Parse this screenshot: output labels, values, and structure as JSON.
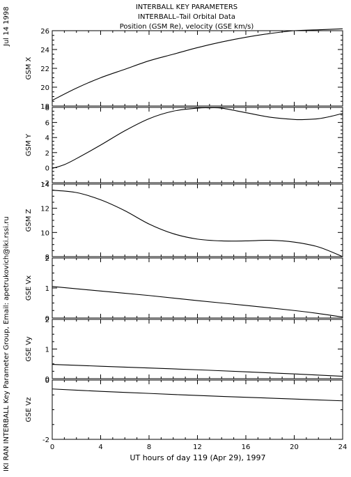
{
  "header": {
    "line1": "INTERBALL KEY PARAMETERS",
    "line2": "INTERBALL–Tail Orbital Data",
    "line3": "Position (GSM Re), velocity (GSE km/s)"
  },
  "side": {
    "date": "Jul 14 1998",
    "credit": "IKI RAN INTERBALL Key Parameter Group, Email: apetrukovich@iki.rssi.ru"
  },
  "xaxis": {
    "label": "UT hours of day 119 (Apr 29), 1997",
    "ticks": [
      "0",
      "4",
      "8",
      "12",
      "16",
      "20",
      "24"
    ]
  },
  "chart_data": [
    {
      "type": "line",
      "ylabel": "GSM X",
      "xlim": [
        0,
        24
      ],
      "ylim": [
        18,
        26
      ],
      "yticks": [
        "18",
        "20",
        "22",
        "24",
        "26"
      ],
      "series": [
        {
          "x": [
            0,
            2,
            4,
            6,
            8,
            10,
            12,
            14,
            16,
            18,
            20,
            22,
            24
          ],
          "values": [
            18.6,
            19.9,
            21.0,
            21.9,
            22.8,
            23.5,
            24.2,
            24.8,
            25.3,
            25.7,
            26.0,
            26.1,
            26.2
          ]
        }
      ]
    },
    {
      "type": "line",
      "ylabel": "GSM Y",
      "xlim": [
        0,
        24
      ],
      "ylim": [
        -2,
        8
      ],
      "yticks": [
        "-2",
        "0",
        "2",
        "4",
        "6",
        "8"
      ],
      "series": [
        {
          "x": [
            0,
            1,
            2,
            4,
            6,
            8,
            10,
            12,
            13,
            14,
            16,
            18,
            20,
            21,
            22,
            23,
            24
          ],
          "values": [
            -0.1,
            0.4,
            1.2,
            3.0,
            4.9,
            6.5,
            7.5,
            7.9,
            7.95,
            7.9,
            7.3,
            6.7,
            6.4,
            6.4,
            6.5,
            6.8,
            7.2
          ]
        }
      ]
    },
    {
      "type": "line",
      "ylabel": "GSM Z",
      "xlim": [
        0,
        24
      ],
      "ylim": [
        8,
        14
      ],
      "yticks": [
        "8",
        "10",
        "12",
        "14"
      ],
      "series": [
        {
          "x": [
            0,
            2,
            4,
            6,
            8,
            10,
            12,
            14,
            16,
            18,
            20,
            22,
            24
          ],
          "values": [
            13.5,
            13.3,
            12.7,
            11.8,
            10.7,
            9.9,
            9.45,
            9.3,
            9.3,
            9.35,
            9.2,
            8.8,
            8.0
          ]
        }
      ]
    },
    {
      "type": "line",
      "ylabel": "GSE Vx",
      "xlim": [
        0,
        24
      ],
      "ylim": [
        0,
        2
      ],
      "yticks": [
        "0",
        "1",
        "2"
      ],
      "series": [
        {
          "x": [
            0,
            4,
            8,
            12,
            16,
            20,
            22,
            24
          ],
          "values": [
            1.05,
            0.9,
            0.75,
            0.58,
            0.42,
            0.25,
            0.15,
            0.03
          ]
        }
      ]
    },
    {
      "type": "line",
      "ylabel": "GSE Vy",
      "xlim": [
        0,
        24
      ],
      "ylim": [
        0,
        2
      ],
      "yticks": [
        "0",
        "1",
        "2"
      ],
      "series": [
        {
          "x": [
            0,
            4,
            8,
            12,
            16,
            20,
            24
          ],
          "values": [
            0.48,
            0.42,
            0.36,
            0.3,
            0.23,
            0.16,
            0.08
          ]
        }
      ]
    },
    {
      "type": "line",
      "ylabel": "GSE Vz",
      "xlim": [
        0,
        24
      ],
      "ylim": [
        -2,
        0
      ],
      "yticks": [
        "-2",
        "0"
      ],
      "series": [
        {
          "x": [
            0,
            4,
            8,
            12,
            16,
            20,
            24
          ],
          "values": [
            -0.3,
            -0.38,
            -0.45,
            -0.52,
            -0.58,
            -0.64,
            -0.7
          ]
        }
      ]
    }
  ]
}
